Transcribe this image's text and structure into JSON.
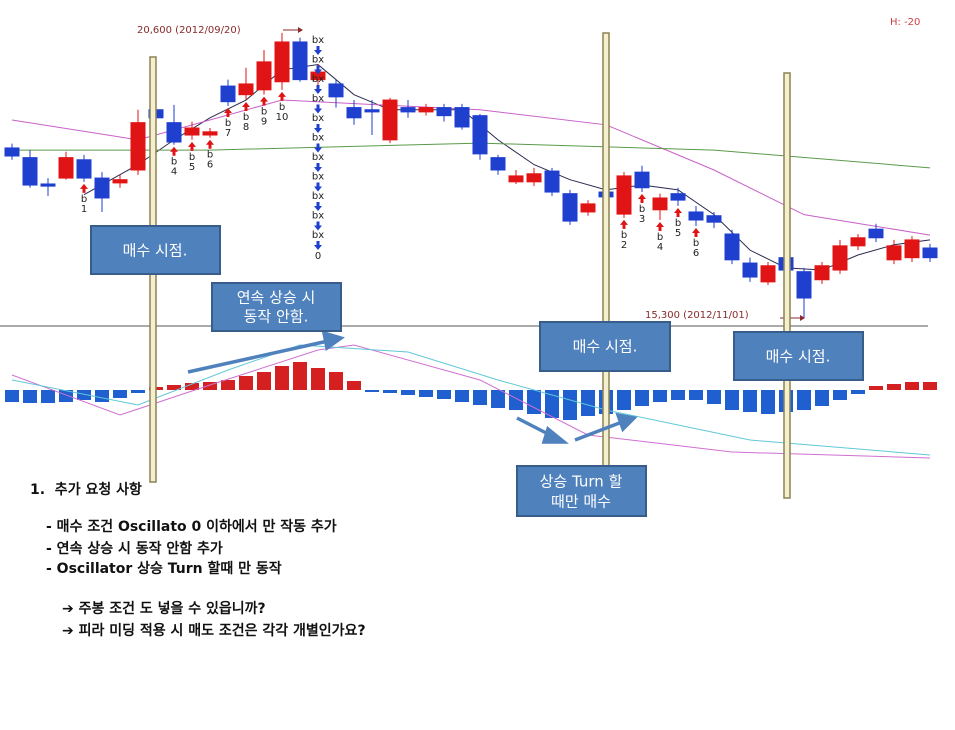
{
  "chart_data": [
    {
      "type": "candlestick",
      "up_color": "#e01414",
      "down_color": "#1f3fcf",
      "ylim": [
        15150,
        21210
      ],
      "open": [
        18460,
        18280,
        17790,
        17900,
        18240,
        17900,
        17810,
        18050,
        19170,
        18930,
        18700,
        18700,
        19610,
        19450,
        19540,
        19690,
        20430,
        19730,
        19650,
        19210,
        19170,
        18610,
        19210,
        19130,
        19210,
        19210,
        19060,
        18280,
        17830,
        17830,
        18030,
        17610,
        17270,
        17640,
        17230,
        18010,
        17310,
        17610,
        17270,
        17200,
        16860,
        16320,
        15970,
        16420,
        16160,
        16010,
        16190,
        16640,
        16950,
        16380,
        16420,
        16600
      ],
      "high": [
        18540,
        18420,
        17900,
        18390,
        18330,
        18010,
        17960,
        19170,
        19350,
        19260,
        18950,
        18830,
        19730,
        19950,
        20280,
        20600,
        20510,
        20010,
        19730,
        19350,
        19350,
        19390,
        19350,
        19280,
        19280,
        19280,
        19090,
        18330,
        18050,
        18090,
        18090,
        17680,
        17490,
        17720,
        18010,
        18130,
        17610,
        17720,
        17380,
        17270,
        16940,
        16420,
        16340,
        16490,
        16230,
        16340,
        16750,
        16860,
        17050,
        16750,
        16820,
        16680
      ],
      "low": [
        18240,
        17720,
        17570,
        17870,
        17830,
        17270,
        17720,
        17960,
        18890,
        18520,
        18610,
        18650,
        19240,
        19350,
        19450,
        19540,
        19690,
        19580,
        19210,
        18890,
        18700,
        18550,
        19020,
        19060,
        18950,
        18800,
        18240,
        17960,
        17790,
        17750,
        17570,
        17030,
        17200,
        17490,
        17160,
        17640,
        17120,
        17380,
        17010,
        16970,
        16300,
        15970,
        15910,
        16120,
        15300,
        15930,
        16120,
        16560,
        16710,
        16300,
        16340,
        16340
      ],
      "close": [
        18310,
        17770,
        17750,
        18280,
        17900,
        17530,
        17870,
        18930,
        19020,
        18570,
        18830,
        18760,
        19320,
        19650,
        20060,
        20430,
        19730,
        19870,
        19410,
        19020,
        19130,
        19350,
        19130,
        19210,
        19060,
        18850,
        18350,
        18050,
        17940,
        17980,
        17640,
        17100,
        17420,
        17550,
        17940,
        17720,
        17530,
        17490,
        17120,
        17080,
        16380,
        16060,
        16270,
        16190,
        15670,
        16270,
        16640,
        16790,
        16790,
        16640,
        16750,
        16420
      ],
      "lines": [
        {
          "color": "#2a2a50",
          "x": [
            5,
            8,
            10,
            12,
            14,
            16,
            18,
            20,
            22,
            26,
            28,
            30,
            32,
            34,
            36,
            38,
            40,
            42,
            44,
            46,
            48,
            50,
            52
          ],
          "values": [
            17590,
            18150,
            18610,
            19020,
            19350,
            19910,
            20010,
            19450,
            19170,
            19170,
            18610,
            18150,
            17870,
            17680,
            17770,
            17680,
            17220,
            16560,
            16230,
            16190,
            16470,
            16660,
            16750
          ]
        },
        {
          "color": "#c860c8",
          "x": [
            1,
            8,
            16,
            27,
            34,
            40,
            45,
            52
          ],
          "values": [
            18980,
            18610,
            19350,
            19170,
            18890,
            18050,
            17220,
            16840
          ]
        },
        {
          "color": "#5a9a4a",
          "x": [
            1,
            12,
            27,
            40,
            52
          ],
          "values": [
            18420,
            18420,
            18550,
            18420,
            18090
          ]
        }
      ],
      "buy_signals": [
        {
          "label": "b",
          "number": "1"
        },
        {
          "label": "b",
          "number": "4"
        },
        {
          "label": "b",
          "number": "5"
        },
        {
          "label": "b",
          "number": "6"
        },
        {
          "label": "b",
          "number": "7"
        },
        {
          "label": "b",
          "number": "8"
        },
        {
          "label": "b",
          "number": "9"
        },
        {
          "label": "b",
          "number": "10"
        },
        {
          "label": "b",
          "number": "1"
        },
        {
          "label": "b",
          "number": "2"
        },
        {
          "label": "b",
          "number": "3"
        },
        {
          "label": "b",
          "number": "4"
        },
        {
          "label": "b",
          "number": "5"
        },
        {
          "label": "b",
          "number": "6"
        }
      ],
      "sell_signal": {
        "label": "bx",
        "last": "0"
      },
      "annotations": [
        "20,600 (2012/09/20)",
        "15,300 (2012/11/01)",
        "H: -20"
      ]
    },
    {
      "type": "bar",
      "up_color": "#d42020",
      "down_color": "#1f5fcf",
      "ylim": [
        -70,
        64
      ],
      "values": [
        -12,
        -13,
        -13,
        -12,
        -10,
        -12,
        -8,
        -3,
        3,
        5,
        7,
        8,
        10,
        14,
        18,
        24,
        28,
        22,
        18,
        9,
        -2,
        -3,
        -5,
        -7,
        -9,
        -12,
        -15,
        -18,
        -20,
        -24,
        -28,
        -30,
        -26,
        -24,
        -20,
        -16,
        -12,
        -10,
        -10,
        -14,
        -20,
        -22,
        -24,
        -22,
        -20,
        -16,
        -10,
        -4,
        4,
        6,
        8,
        8
      ],
      "lines": [
        {
          "color": "#d070d0",
          "x": [
            1,
            7,
            12,
            18,
            20,
            27,
            33,
            41,
            52
          ],
          "values": [
            15,
            -25,
            5,
            40,
            45,
            10,
            -45,
            -62,
            -68
          ]
        },
        {
          "color": "#60c8d8",
          "x": [
            1,
            8,
            13,
            17,
            23,
            28,
            34,
            42,
            52
          ],
          "values": [
            10,
            -15,
            20,
            45,
            38,
            10,
            -20,
            -50,
            -65
          ]
        }
      ]
    }
  ],
  "callouts": [
    {
      "lines": [
        "매수 시점."
      ]
    },
    {
      "lines": [
        "연속 상승 시",
        "동작 안함."
      ]
    },
    {
      "lines": [
        "매수 시점."
      ]
    },
    {
      "lines": [
        "매수 시점."
      ]
    },
    {
      "lines": [
        "상승 Turn 할",
        "때만 매수"
      ]
    }
  ],
  "notes": {
    "heading": "1.  추가 요청 사항",
    "items": [
      "- 매수 조건 Oscillato 0 이하에서 만 작동 추가",
      "- 연속 상승 시 동작 안함 추가",
      "- Oscillator 상승 Turn 할때 만 동작"
    ],
    "questions": [
      "➔ 주봉 조건 도 넣을 수 있읍니까?",
      "➔ 피라 미딩 적용 시 매도 조건은 각각 개별인가요?"
    ]
  }
}
